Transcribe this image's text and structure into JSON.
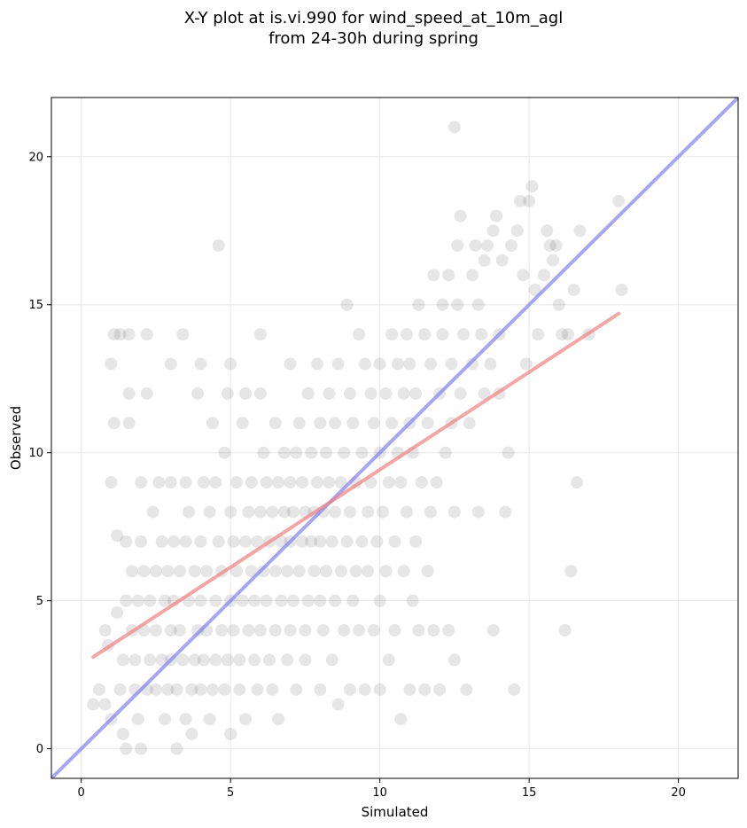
{
  "chart_data": {
    "type": "scatter",
    "title_lines": [
      "X-Y plot at is.vi.990 for wind_speed_at_10m_agl",
      "from 24-30h during spring"
    ],
    "xlabel": "Simulated",
    "ylabel": "Observed",
    "xlim": [
      -1,
      22
    ],
    "ylim": [
      -1,
      22
    ],
    "xticks": [
      0,
      5,
      10,
      15,
      20
    ],
    "yticks": [
      0,
      5,
      10,
      15,
      20
    ],
    "grid": true,
    "colors": {
      "points": "#555555",
      "identity_line": "#8080f0",
      "fit_line": "#f08080"
    },
    "identity_line": {
      "x": [
        -1,
        22
      ],
      "y": [
        -1,
        22
      ]
    },
    "fit_line": {
      "x": [
        0.4,
        18.0
      ],
      "y": [
        3.1,
        14.7
      ]
    },
    "points": [
      [
        0.4,
        1.5
      ],
      [
        0.6,
        2.0
      ],
      [
        0.8,
        1.5
      ],
      [
        0.8,
        4.0
      ],
      [
        0.9,
        3.5
      ],
      [
        1.0,
        1.0
      ],
      [
        1.0,
        9.0
      ],
      [
        1.0,
        13.0
      ],
      [
        1.1,
        14.0
      ],
      [
        1.1,
        11.0
      ],
      [
        1.2,
        4.6
      ],
      [
        1.2,
        7.2
      ],
      [
        1.3,
        14.0
      ],
      [
        1.3,
        2.0
      ],
      [
        1.4,
        0.5
      ],
      [
        1.4,
        3.0
      ],
      [
        1.5,
        0.0
      ],
      [
        1.5,
        5.0
      ],
      [
        1.5,
        7.0
      ],
      [
        1.6,
        11.0
      ],
      [
        1.6,
        14.0
      ],
      [
        1.6,
        12.0
      ],
      [
        1.7,
        4.0
      ],
      [
        1.7,
        6.0
      ],
      [
        1.8,
        2.0
      ],
      [
        1.8,
        3.0
      ],
      [
        1.9,
        1.0
      ],
      [
        1.9,
        5.0
      ],
      [
        2.0,
        0.0
      ],
      [
        2.0,
        7.0
      ],
      [
        2.0,
        9.0
      ],
      [
        2.1,
        4.0
      ],
      [
        2.1,
        6.0
      ],
      [
        2.2,
        2.0
      ],
      [
        2.2,
        12.0
      ],
      [
        2.2,
        14.0
      ],
      [
        2.3,
        3.0
      ],
      [
        2.3,
        5.0
      ],
      [
        2.4,
        8.0
      ],
      [
        2.5,
        2.0
      ],
      [
        2.5,
        4.0
      ],
      [
        2.5,
        6.0
      ],
      [
        2.6,
        9.0
      ],
      [
        2.7,
        3.0
      ],
      [
        2.7,
        7.0
      ],
      [
        2.8,
        1.0
      ],
      [
        2.8,
        5.0
      ],
      [
        2.9,
        2.0
      ],
      [
        2.9,
        6.0
      ],
      [
        3.0,
        3.0
      ],
      [
        3.0,
        4.0
      ],
      [
        3.0,
        9.0
      ],
      [
        3.0,
        13.0
      ],
      [
        3.1,
        7.0
      ],
      [
        3.1,
        5.0
      ],
      [
        3.2,
        2.0
      ],
      [
        3.2,
        0.0
      ],
      [
        3.3,
        6.0
      ],
      [
        3.3,
        4.0
      ],
      [
        3.4,
        3.0
      ],
      [
        3.4,
        14.0
      ],
      [
        3.5,
        1.0
      ],
      [
        3.5,
        7.0
      ],
      [
        3.5,
        9.0
      ],
      [
        3.6,
        5.0
      ],
      [
        3.6,
        8.0
      ],
      [
        3.7,
        2.0
      ],
      [
        3.7,
        0.5
      ],
      [
        3.8,
        3.0
      ],
      [
        3.8,
        6.0
      ],
      [
        3.9,
        4.0
      ],
      [
        3.9,
        12.0
      ],
      [
        4.0,
        2.0
      ],
      [
        4.0,
        5.0
      ],
      [
        4.0,
        7.0
      ],
      [
        4.0,
        13.0
      ],
      [
        4.1,
        3.0
      ],
      [
        4.1,
        9.0
      ],
      [
        4.2,
        6.0
      ],
      [
        4.2,
        4.0
      ],
      [
        4.3,
        1.0
      ],
      [
        4.3,
        8.0
      ],
      [
        4.4,
        2.0
      ],
      [
        4.4,
        11.0
      ],
      [
        4.5,
        5.0
      ],
      [
        4.5,
        3.0
      ],
      [
        4.5,
        9.0
      ],
      [
        4.6,
        7.0
      ],
      [
        4.6,
        17.0
      ],
      [
        4.7,
        6.0
      ],
      [
        4.7,
        4.0
      ],
      [
        4.8,
        2.0
      ],
      [
        4.8,
        10.0
      ],
      [
        4.9,
        3.0
      ],
      [
        4.9,
        12.0
      ],
      [
        5.0,
        0.5
      ],
      [
        5.0,
        5.0
      ],
      [
        5.0,
        8.0
      ],
      [
        5.0,
        13.0
      ],
      [
        5.1,
        7.0
      ],
      [
        5.1,
        4.0
      ],
      [
        5.2,
        6.0
      ],
      [
        5.2,
        9.0
      ],
      [
        5.3,
        2.0
      ],
      [
        5.3,
        3.0
      ],
      [
        5.4,
        5.0
      ],
      [
        5.4,
        11.0
      ],
      [
        5.5,
        1.0
      ],
      [
        5.5,
        7.0
      ],
      [
        5.5,
        12.0
      ],
      [
        5.6,
        4.0
      ],
      [
        5.6,
        8.0
      ],
      [
        5.7,
        6.0
      ],
      [
        5.7,
        9.0
      ],
      [
        5.8,
        3.0
      ],
      [
        5.8,
        5.0
      ],
      [
        5.9,
        2.0
      ],
      [
        5.9,
        7.0
      ],
      [
        6.0,
        4.0
      ],
      [
        6.0,
        8.0
      ],
      [
        6.0,
        12.0
      ],
      [
        6.0,
        14.0
      ],
      [
        6.1,
        6.0
      ],
      [
        6.1,
        10.0
      ],
      [
        6.2,
        5.0
      ],
      [
        6.2,
        9.0
      ],
      [
        6.3,
        3.0
      ],
      [
        6.3,
        7.0
      ],
      [
        6.4,
        2.0
      ],
      [
        6.4,
        8.0
      ],
      [
        6.5,
        4.0
      ],
      [
        6.5,
        6.0
      ],
      [
        6.5,
        11.0
      ],
      [
        6.6,
        1.0
      ],
      [
        6.6,
        9.0
      ],
      [
        6.7,
        5.0
      ],
      [
        6.7,
        7.0
      ],
      [
        6.8,
        8.0
      ],
      [
        6.8,
        10.0
      ],
      [
        6.9,
        3.0
      ],
      [
        6.9,
        6.0
      ],
      [
        7.0,
        4.0
      ],
      [
        7.0,
        7.0
      ],
      [
        7.0,
        9.0
      ],
      [
        7.0,
        13.0
      ],
      [
        7.1,
        5.0
      ],
      [
        7.1,
        8.0
      ],
      [
        7.2,
        2.0
      ],
      [
        7.2,
        10.0
      ],
      [
        7.3,
        6.0
      ],
      [
        7.3,
        11.0
      ],
      [
        7.4,
        7.0
      ],
      [
        7.4,
        9.0
      ],
      [
        7.5,
        4.0
      ],
      [
        7.5,
        8.0
      ],
      [
        7.5,
        3.0
      ],
      [
        7.6,
        5.0
      ],
      [
        7.6,
        12.0
      ],
      [
        7.7,
        7.0
      ],
      [
        7.7,
        10.0
      ],
      [
        7.8,
        6.0
      ],
      [
        7.8,
        8.0
      ],
      [
        7.9,
        9.0
      ],
      [
        7.9,
        13.0
      ],
      [
        8.0,
        2.0
      ],
      [
        8.0,
        5.0
      ],
      [
        8.0,
        7.0
      ],
      [
        8.0,
        11.0
      ],
      [
        8.1,
        8.0
      ],
      [
        8.1,
        4.0
      ],
      [
        8.2,
        6.0
      ],
      [
        8.2,
        10.0
      ],
      [
        8.3,
        9.0
      ],
      [
        8.3,
        12.0
      ],
      [
        8.4,
        7.0
      ],
      [
        8.4,
        3.0
      ],
      [
        8.5,
        5.0
      ],
      [
        8.5,
        8.0
      ],
      [
        8.5,
        11.0
      ],
      [
        8.6,
        13.0
      ],
      [
        8.6,
        1.5
      ],
      [
        8.7,
        6.0
      ],
      [
        8.7,
        9.0
      ],
      [
        8.8,
        4.0
      ],
      [
        8.8,
        10.0
      ],
      [
        8.9,
        7.0
      ],
      [
        8.9,
        15.0
      ],
      [
        9.0,
        2.0
      ],
      [
        9.0,
        8.0
      ],
      [
        9.0,
        12.0
      ],
      [
        9.1,
        5.0
      ],
      [
        9.1,
        11.0
      ],
      [
        9.2,
        6.0
      ],
      [
        9.2,
        9.0
      ],
      [
        9.3,
        4.0
      ],
      [
        9.3,
        14.0
      ],
      [
        9.4,
        7.0
      ],
      [
        9.4,
        10.0
      ],
      [
        9.5,
        2.0
      ],
      [
        9.5,
        13.0
      ],
      [
        9.6,
        6.0
      ],
      [
        9.6,
        8.0
      ],
      [
        9.7,
        12.0
      ],
      [
        9.7,
        9.0
      ],
      [
        9.8,
        4.0
      ],
      [
        9.8,
        11.0
      ],
      [
        9.9,
        7.0
      ],
      [
        10.0,
        2.0
      ],
      [
        10.0,
        5.0
      ],
      [
        10.0,
        10.0
      ],
      [
        10.0,
        13.0
      ],
      [
        10.1,
        8.0
      ],
      [
        10.2,
        6.0
      ],
      [
        10.2,
        12.0
      ],
      [
        10.3,
        9.0
      ],
      [
        10.3,
        3.0
      ],
      [
        10.4,
        11.0
      ],
      [
        10.4,
        14.0
      ],
      [
        10.5,
        4.0
      ],
      [
        10.5,
        7.0
      ],
      [
        10.6,
        10.0
      ],
      [
        10.6,
        13.0
      ],
      [
        10.7,
        1.0
      ],
      [
        10.7,
        9.0
      ],
      [
        10.8,
        12.0
      ],
      [
        10.8,
        6.0
      ],
      [
        10.9,
        8.0
      ],
      [
        10.9,
        14.0
      ],
      [
        11.0,
        2.0
      ],
      [
        11.0,
        11.0
      ],
      [
        11.0,
        13.0
      ],
      [
        11.1,
        5.0
      ],
      [
        11.1,
        10.0
      ],
      [
        11.2,
        7.0
      ],
      [
        11.2,
        12.0
      ],
      [
        11.3,
        4.0
      ],
      [
        11.3,
        15.0
      ],
      [
        11.4,
        9.0
      ],
      [
        11.5,
        2.0
      ],
      [
        11.5,
        14.0
      ],
      [
        11.6,
        11.0
      ],
      [
        11.6,
        6.0
      ],
      [
        11.7,
        8.0
      ],
      [
        11.7,
        13.0
      ],
      [
        11.8,
        16.0
      ],
      [
        11.8,
        4.0
      ],
      [
        11.9,
        9.0
      ],
      [
        12.0,
        2.0
      ],
      [
        12.0,
        12.0
      ],
      [
        12.1,
        14.0
      ],
      [
        12.1,
        15.0
      ],
      [
        12.2,
        10.0
      ],
      [
        12.3,
        4.0
      ],
      [
        12.3,
        16.0
      ],
      [
        12.4,
        11.0
      ],
      [
        12.4,
        13.0
      ],
      [
        12.5,
        8.0
      ],
      [
        12.5,
        21.0
      ],
      [
        12.5,
        3.0
      ],
      [
        12.6,
        15.0
      ],
      [
        12.6,
        17.0
      ],
      [
        12.7,
        18.0
      ],
      [
        12.7,
        12.0
      ],
      [
        12.8,
        14.0
      ],
      [
        12.9,
        2.0
      ],
      [
        13.0,
        11.0
      ],
      [
        13.1,
        16.0
      ],
      [
        13.1,
        13.0
      ],
      [
        13.2,
        17.0
      ],
      [
        13.3,
        8.0
      ],
      [
        13.3,
        15.0
      ],
      [
        13.4,
        14.0
      ],
      [
        13.5,
        16.5
      ],
      [
        13.5,
        12.0
      ],
      [
        13.6,
        17.0
      ],
      [
        13.7,
        13.0
      ],
      [
        13.8,
        4.0
      ],
      [
        13.8,
        17.5
      ],
      [
        13.9,
        18.0
      ],
      [
        14.0,
        14.0
      ],
      [
        14.0,
        12.0
      ],
      [
        14.1,
        16.5
      ],
      [
        14.2,
        8.0
      ],
      [
        14.3,
        10.0
      ],
      [
        14.4,
        17.0
      ],
      [
        14.5,
        2.0
      ],
      [
        14.6,
        17.5
      ],
      [
        14.7,
        18.5
      ],
      [
        14.8,
        16.0
      ],
      [
        14.9,
        13.0
      ],
      [
        15.0,
        18.5
      ],
      [
        15.1,
        19.0
      ],
      [
        15.2,
        15.5
      ],
      [
        15.3,
        14.0
      ],
      [
        15.5,
        16.0
      ],
      [
        15.6,
        17.5
      ],
      [
        15.7,
        17.0
      ],
      [
        15.8,
        16.5
      ],
      [
        15.9,
        17.0
      ],
      [
        16.0,
        15.0
      ],
      [
        16.1,
        14.0
      ],
      [
        16.2,
        4.0
      ],
      [
        16.3,
        14.0
      ],
      [
        16.4,
        6.0
      ],
      [
        16.5,
        15.5
      ],
      [
        16.6,
        9.0
      ],
      [
        16.7,
        17.5
      ],
      [
        17.0,
        14.0
      ],
      [
        18.0,
        18.5
      ],
      [
        18.1,
        15.5
      ]
    ]
  }
}
